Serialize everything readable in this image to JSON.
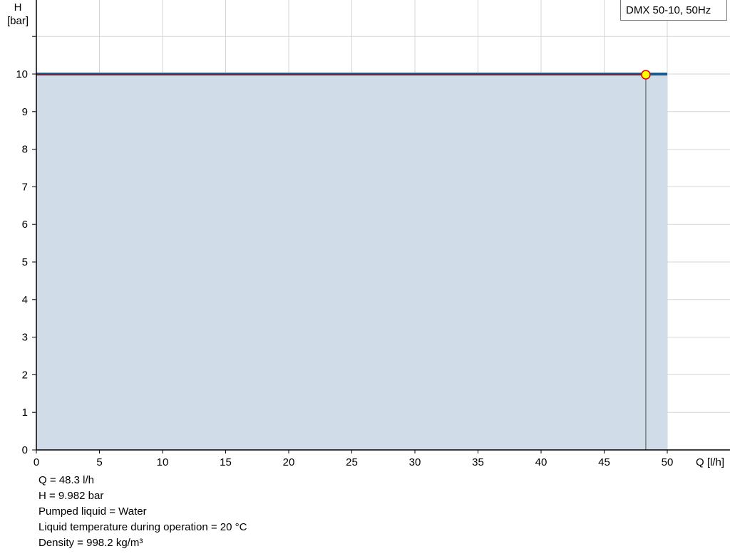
{
  "chart_data": {
    "type": "area",
    "title": "",
    "legend": "DMX 50-10, 50Hz",
    "legend_placement": "top-right",
    "xlabel": "Q [l/h]",
    "ylabel_lines": [
      "H",
      "[bar]"
    ],
    "xlim": [
      0,
      55
    ],
    "ylim": [
      0,
      12
    ],
    "x_ticks": [
      0,
      5,
      10,
      15,
      20,
      25,
      30,
      35,
      40,
      45,
      50
    ],
    "y_ticks": [
      0,
      1,
      2,
      3,
      4,
      5,
      6,
      7,
      8,
      9,
      10
    ],
    "grid": true,
    "series": [
      {
        "x": [
          0,
          50
        ],
        "y": [
          10,
          10
        ],
        "color": "#1f5a8c",
        "fill": "#d0dce7"
      }
    ],
    "duty_point": {
      "x": 48.3,
      "y": 9.982,
      "fill": "#ffff00",
      "stroke": "#e00000"
    }
  },
  "info": [
    "Q = 48.3 l/h",
    "H = 9.982 bar",
    "Pumped liquid = Water",
    "Liquid temperature during operation = 20 °C",
    "Density = 998.2 kg/m³"
  ]
}
